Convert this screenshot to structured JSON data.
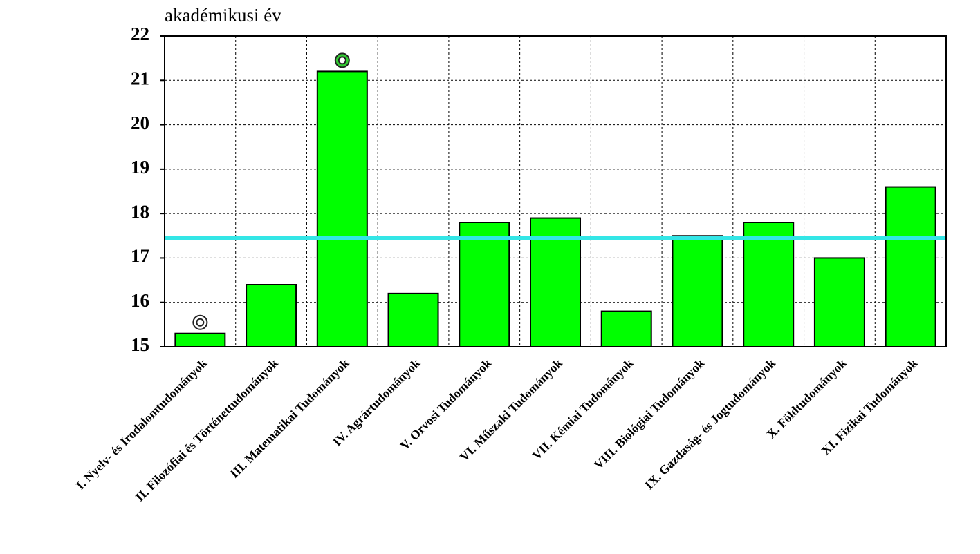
{
  "chart_data": {
    "type": "bar",
    "y_label": "akadémikusi év",
    "categories": [
      "I. Nyelv- és Irodalomtudományok",
      "II. Filozófiai és Történettudományok",
      "III. Matematikai Tudományok",
      "IV. Agrártudományok",
      "V. Orvosi Tudományok",
      "VI. Műszaki Tudományok",
      "VII. Kémiai Tudományok",
      "VIII. Biológiai Tudományok",
      "IX. Gazdaság- és Jogtudományok",
      "X. Földtudományok",
      "XI. Fizikai Tudományok"
    ],
    "values": [
      15.3,
      16.4,
      21.2,
      16.2,
      17.8,
      17.9,
      15.8,
      17.5,
      17.8,
      17.0,
      18.6
    ],
    "color": "#00ff00",
    "ylim": [
      15,
      22
    ],
    "yticks": [
      15,
      16,
      17,
      18,
      19,
      20,
      21,
      22
    ],
    "grid": true,
    "average_line": {
      "value": 17.45,
      "color": "#33e6e6"
    }
  }
}
